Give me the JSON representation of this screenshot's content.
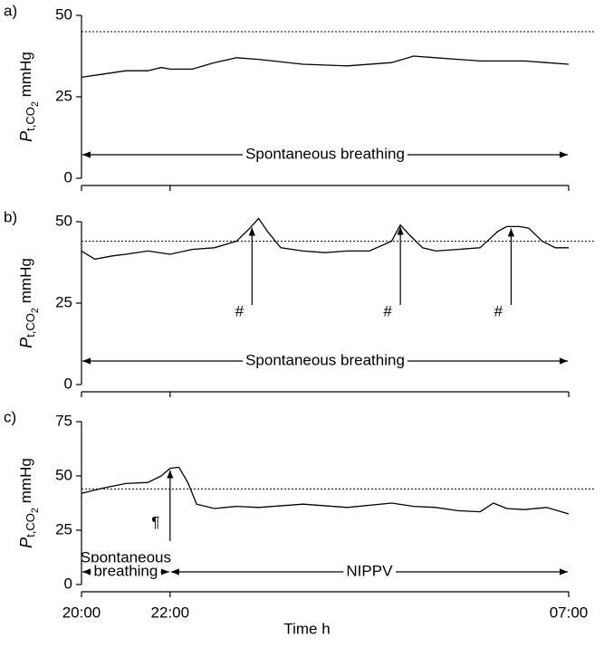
{
  "chart_data": [
    {
      "type": "line",
      "panel_label": "a)",
      "ylabel": [
        "P",
        "t,CO",
        "2",
        " mmHg"
      ],
      "x": [
        20,
        20.5,
        21,
        21.5,
        21.8,
        22,
        22.5,
        23,
        23.5,
        24,
        25,
        26,
        27,
        27.5,
        28,
        28.5,
        29,
        29.5,
        30,
        30.5,
        31
      ],
      "series": [
        {
          "color": "#000000",
          "values": [
            31,
            32,
            33,
            33,
            34,
            33.5,
            33.5,
            35.5,
            37,
            36.5,
            35,
            34.5,
            35.5,
            37.5,
            37,
            36.5,
            36,
            36,
            36,
            35.5,
            35
          ]
        }
      ],
      "xlim": [
        20,
        31
      ],
      "ylim": [
        0,
        50
      ],
      "yticks": [
        0,
        25,
        50
      ],
      "threshold": 45,
      "spans": [
        {
          "label": [
            "Spontaneous breathing"
          ],
          "from": 20,
          "to": 31
        }
      ],
      "markers": []
    },
    {
      "type": "line",
      "panel_label": "b)",
      "ylabel": [
        "P",
        "t,CO",
        "2",
        " mmHg"
      ],
      "x": [
        20,
        20.3,
        20.7,
        21,
        21.5,
        22,
        22.5,
        23,
        23.5,
        23.8,
        24,
        24.2,
        24.5,
        25,
        25.5,
        26,
        26.5,
        27,
        27.2,
        27.4,
        27.7,
        28,
        28.5,
        29,
        29.4,
        29.6,
        29.9,
        30.1,
        30.4,
        30.7,
        31
      ],
      "series": [
        {
          "color": "#000000",
          "values": [
            41,
            38.5,
            39.5,
            40,
            41,
            40,
            41.5,
            42,
            44,
            48,
            51,
            47,
            42,
            41,
            40.5,
            41,
            41,
            44,
            49,
            46,
            42,
            41,
            41.5,
            42,
            47,
            48.5,
            48.5,
            48,
            44,
            42,
            42
          ]
        }
      ],
      "xlim": [
        20,
        31
      ],
      "ylim": [
        0,
        50
      ],
      "yticks": [
        0,
        25,
        50
      ],
      "threshold": 44,
      "spans": [
        {
          "label": [
            "Spontaneous breathing"
          ],
          "from": 20,
          "to": 31
        }
      ],
      "markers": [
        {
          "label": "#",
          "x": 23.85
        },
        {
          "label": "#",
          "x": 27.2
        },
        {
          "label": "#",
          "x": 29.7
        }
      ]
    },
    {
      "type": "line",
      "panel_label": "c)",
      "ylabel": [
        "P",
        "t,CO",
        "2",
        " mmHg"
      ],
      "x": [
        20,
        20.5,
        21,
        21.5,
        21.8,
        22,
        22.2,
        22.4,
        22.6,
        23,
        23.5,
        24,
        25,
        26,
        27,
        27.5,
        28,
        28.5,
        29,
        29.3,
        29.6,
        30,
        30.5,
        31
      ],
      "series": [
        {
          "color": "#000000",
          "values": [
            42,
            44.5,
            46.5,
            47,
            50,
            53.5,
            54,
            47,
            37,
            35,
            36,
            35.5,
            37,
            35.5,
            37.5,
            36,
            35.5,
            34,
            33.5,
            37.5,
            35,
            34.5,
            35.5,
            32.5
          ]
        }
      ],
      "xlim": [
        20,
        31
      ],
      "ylim": [
        0,
        75
      ],
      "yticks": [
        0,
        25,
        50,
        75
      ],
      "xticks": [
        {
          "value": 20,
          "label": "20:00"
        },
        {
          "value": 22,
          "label": "22:00"
        },
        {
          "value": 31,
          "label": "07:00"
        }
      ],
      "xlabel": "Time h",
      "threshold": 44,
      "spans": [
        {
          "label": [
            "Spontaneous",
            "breathing"
          ],
          "from": 20,
          "to": 22
        },
        {
          "label": [
            "NIPPV"
          ],
          "from": 22,
          "to": 31
        }
      ],
      "markers": [
        {
          "label": "¶",
          "x": 22.0
        }
      ]
    }
  ]
}
